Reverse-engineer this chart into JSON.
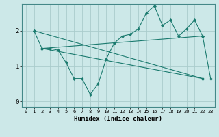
{
  "xlabel": "Humidex (Indice chaleur)",
  "bg_color": "#cce8e8",
  "grid_color": "#aacccc",
  "line_color": "#1a7a6e",
  "xlim": [
    -0.5,
    23.5
  ],
  "ylim": [
    -0.15,
    2.75
  ],
  "yticks": [
    0,
    1,
    2
  ],
  "xticks": [
    0,
    1,
    2,
    3,
    4,
    5,
    6,
    7,
    8,
    9,
    10,
    11,
    12,
    13,
    14,
    15,
    16,
    17,
    18,
    19,
    20,
    21,
    22,
    23
  ],
  "line1_x": [
    1,
    2,
    3,
    4,
    5,
    6,
    7,
    8,
    9,
    10,
    11,
    12,
    13,
    14,
    15,
    16,
    17,
    18,
    19,
    20,
    21,
    22,
    23
  ],
  "line1_y": [
    2.0,
    1.5,
    1.5,
    1.45,
    1.1,
    0.65,
    0.65,
    0.2,
    0.5,
    1.2,
    1.65,
    1.85,
    1.9,
    2.05,
    2.5,
    2.7,
    2.15,
    2.3,
    1.85,
    2.05,
    2.3,
    1.85,
    0.65
  ],
  "line2_x": [
    2,
    22
  ],
  "line2_y": [
    1.5,
    1.85
  ],
  "line3_x": [
    2,
    22
  ],
  "line3_y": [
    1.5,
    0.65
  ],
  "line4_x": [
    1,
    22
  ],
  "line4_y": [
    2.0,
    0.65
  ]
}
